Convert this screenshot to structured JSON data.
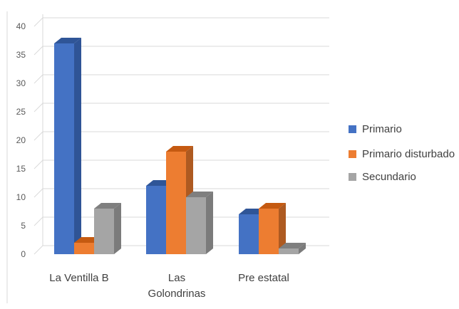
{
  "chart_data": {
    "type": "bar",
    "style": "3d-clustered-column",
    "categories": [
      [
        "La Ventilla B"
      ],
      [
        "Las",
        "Golondrinas"
      ],
      [
        "Pre estatal"
      ]
    ],
    "series": [
      {
        "name": "Primario",
        "values": [
          37,
          12,
          7
        ],
        "color": "#4472c4",
        "side": "#2f5496",
        "top": "#2f5597"
      },
      {
        "name": "Primario disturbado",
        "values": [
          2,
          18,
          8
        ],
        "color": "#ed7d31",
        "side": "#ae5a21",
        "top": "#c55a11"
      },
      {
        "name": "Secundario",
        "values": [
          8,
          10,
          1
        ],
        "color": "#a5a5a5",
        "side": "#7b7b7b",
        "top": "#7f7f7f"
      }
    ],
    "yticks": [
      0,
      5,
      10,
      15,
      20,
      25,
      30,
      35,
      40
    ],
    "ylim": [
      0,
      40
    ],
    "title": "",
    "xlabel": "",
    "ylabel": "",
    "grid": true,
    "legend_position": "right"
  }
}
